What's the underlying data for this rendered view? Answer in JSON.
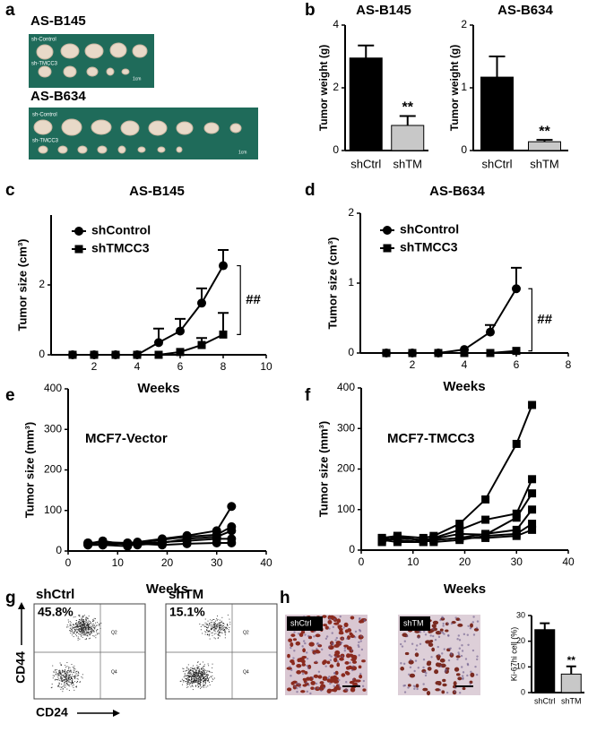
{
  "panel_labels": [
    "a",
    "b",
    "c",
    "d",
    "e",
    "f",
    "g",
    "h"
  ],
  "images": {
    "a": {
      "title1": "AS-B145",
      "ctrl1": "sh-Control",
      "tm1": "sh-TMCC3",
      "scale1": "1cm",
      "title2": "AS-B634",
      "ctrl2": "sh-Control",
      "tm2": "sh-TMCC3",
      "scale2": "1cm"
    },
    "g": {
      "left_title": "shCtrl",
      "right_title": "shTM",
      "left_pct": "45.8%",
      "right_pct": "15.1%",
      "y_label": "CD44",
      "x_label": "CD24",
      "q2": "Q2",
      "q4": "Q4"
    },
    "h": {
      "left_label": "shCtrl",
      "right_label": "shTM"
    }
  },
  "chart_data": [
    {
      "type": "bar",
      "title": "AS-B145",
      "y_label": "Tumor weight (g)",
      "categories": [
        "shCtrl",
        "shTM"
      ],
      "values": [
        2.95,
        0.8
      ],
      "errors": [
        0.4,
        0.3
      ],
      "colors": [
        "#000000",
        "#c8c8c8"
      ],
      "ylim": [
        0,
        4
      ],
      "yticks": [
        0,
        2,
        4
      ],
      "annotation": "**"
    },
    {
      "type": "bar",
      "title": "AS-B634",
      "y_label": "Tumor weight (g)",
      "categories": [
        "shCtrl",
        "shTM"
      ],
      "values": [
        1.17,
        0.14
      ],
      "errors": [
        0.33,
        0.03
      ],
      "colors": [
        "#000000",
        "#c8c8c8"
      ],
      "ylim": [
        0,
        2
      ],
      "yticks": [
        0,
        1,
        2
      ],
      "annotation": "**"
    },
    {
      "type": "line",
      "title": "AS-B145",
      "x_label": "Weeks",
      "y_label": "Tumor size (cm³)",
      "x": [
        1,
        2,
        3,
        4,
        5,
        6,
        7,
        8
      ],
      "xlim": [
        0,
        10
      ],
      "xticks": [
        2,
        4,
        6,
        8,
        10
      ],
      "ylim": [
        0,
        4
      ],
      "yticks": [
        0,
        2
      ],
      "series": [
        {
          "name": "shControl",
          "color": "#000000",
          "marker": "circle",
          "values": [
            0,
            0,
            0,
            0,
            0.35,
            0.68,
            1.48,
            2.55
          ],
          "errors": [
            null,
            null,
            null,
            null,
            0.4,
            0.35,
            0.42,
            0.45
          ]
        },
        {
          "name": "shTMCC3",
          "color": "#000000",
          "marker": "square",
          "values": [
            0,
            0,
            0,
            0,
            0,
            0.08,
            0.28,
            0.58
          ],
          "errors": [
            null,
            null,
            null,
            null,
            null,
            null,
            0.2,
            0.62
          ]
        }
      ],
      "annotation": "##"
    },
    {
      "type": "line",
      "title": "AS-B634",
      "x_label": "Weeks",
      "y_label": "Tumor size (cm³)",
      "x": [
        1,
        2,
        3,
        4,
        5,
        6
      ],
      "xlim": [
        0,
        8
      ],
      "xticks": [
        2,
        4,
        6,
        8
      ],
      "ylim": [
        0,
        2
      ],
      "yticks": [
        0,
        1,
        2
      ],
      "series": [
        {
          "name": "shControl",
          "color": "#000000",
          "marker": "circle",
          "values": [
            0,
            0,
            0,
            0.05,
            0.3,
            0.92
          ],
          "errors": [
            null,
            null,
            null,
            null,
            0.1,
            0.3
          ]
        },
        {
          "name": "shTMCC3",
          "color": "#000000",
          "marker": "square",
          "values": [
            0,
            0,
            0,
            0,
            0,
            0.03
          ],
          "errors": [
            null,
            null,
            null,
            null,
            null,
            null
          ]
        }
      ],
      "annotation": "##"
    },
    {
      "type": "line",
      "title": "MCF7-Vector",
      "x_label": "Weeks",
      "y_label": "Tumor size (mm³)",
      "x": [
        4,
        7,
        12,
        14,
        19,
        24,
        30,
        33
      ],
      "xlim": [
        0,
        40
      ],
      "xticks": [
        0,
        10,
        20,
        30,
        40
      ],
      "ylim": [
        0,
        400
      ],
      "yticks": [
        0,
        100,
        200,
        300,
        400
      ],
      "series": [
        {
          "color": "#000000",
          "marker": "circle",
          "values": [
            20,
            22,
            20,
            22,
            30,
            38,
            50,
            110
          ]
        },
        {
          "color": "#000000",
          "marker": "circle",
          "values": [
            18,
            25,
            15,
            20,
            28,
            35,
            40,
            60
          ]
        },
        {
          "color": "#000000",
          "marker": "circle",
          "values": [
            15,
            18,
            18,
            15,
            20,
            30,
            35,
            50
          ]
        },
        {
          "color": "#000000",
          "marker": "circle",
          "values": [
            20,
            15,
            20,
            18,
            22,
            25,
            30,
            30
          ]
        },
        {
          "color": "#000000",
          "marker": "circle",
          "values": [
            15,
            15,
            12,
            18,
            15,
            18,
            20,
            20
          ]
        }
      ]
    },
    {
      "type": "line",
      "title": "MCF7-TMCC3",
      "x_label": "Weeks",
      "y_label": "Tumor size (mm³)",
      "x": [
        4,
        7,
        12,
        14,
        19,
        24,
        30,
        33
      ],
      "xlim": [
        0,
        40
      ],
      "xticks": [
        0,
        10,
        20,
        30,
        40
      ],
      "ylim": [
        0,
        400
      ],
      "yticks": [
        0,
        100,
        200,
        300,
        400
      ],
      "series": [
        {
          "color": "#000000",
          "marker": "square",
          "values": [
            30,
            35,
            30,
            35,
            65,
            125,
            262,
            358
          ]
        },
        {
          "color": "#000000",
          "marker": "square",
          "values": [
            25,
            30,
            25,
            30,
            50,
            75,
            90,
            175
          ]
        },
        {
          "color": "#000000",
          "marker": "square",
          "values": [
            20,
            35,
            22,
            28,
            40,
            38,
            80,
            140
          ]
        },
        {
          "color": "#000000",
          "marker": "square",
          "values": [
            30,
            25,
            20,
            25,
            30,
            40,
            50,
            100
          ]
        },
        {
          "color": "#000000",
          "marker": "square",
          "values": [
            20,
            30,
            25,
            20,
            25,
            35,
            40,
            65
          ]
        },
        {
          "color": "#000000",
          "marker": "square",
          "values": [
            25,
            20,
            20,
            25,
            30,
            30,
            35,
            50
          ]
        }
      ]
    },
    {
      "type": "bar",
      "y_label": "Ki-67hi cell (%)",
      "categories": [
        "shCtrl",
        "shTM"
      ],
      "values": [
        24.5,
        7.2
      ],
      "errors": [
        2.5,
        3
      ],
      "colors": [
        "#000000",
        "#c8c8c8"
      ],
      "ylim": [
        0,
        30
      ],
      "yticks": [
        0,
        10,
        20,
        30
      ],
      "annotation": "**"
    }
  ]
}
